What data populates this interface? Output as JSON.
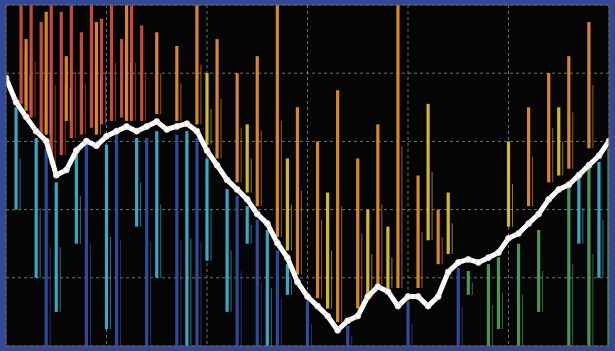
{
  "chart_data": {
    "type": "line",
    "xlim": [
      0,
      120
    ],
    "ylim": [
      0,
      100
    ],
    "xticks": [
      0,
      20,
      40,
      60,
      80,
      100,
      120
    ],
    "yticks": [
      0,
      20,
      40,
      60,
      80,
      100
    ],
    "grid": true,
    "tick_labels": false,
    "series": [
      {
        "type": "line",
        "color": "#ffffff",
        "marker": "circle",
        "x": [
          0,
          2,
          4,
          6,
          8,
          10,
          12,
          14,
          16,
          18,
          20,
          22,
          24,
          26,
          28,
          30,
          32,
          34,
          36,
          38,
          40,
          42,
          44,
          46,
          48,
          50,
          52,
          54,
          56,
          58,
          60,
          62,
          64,
          66,
          68,
          70,
          72,
          74,
          76,
          78,
          80,
          82,
          84,
          86,
          88,
          90,
          92,
          94,
          96,
          98,
          100,
          102,
          104,
          106,
          108,
          110,
          112,
          114,
          116,
          118,
          120
        ],
        "values": [
          78.6,
          71.5,
          67.2,
          63,
          60.1,
          50.1,
          51.6,
          57.3,
          60.1,
          58.7,
          61.5,
          63,
          64.4,
          63,
          64.4,
          65.8,
          63.5,
          64.4,
          65.2,
          63,
          57.3,
          53,
          48.7,
          45.9,
          43,
          38.7,
          35.9,
          30.2,
          25.9,
          18.8,
          14.5,
          11.7,
          8.8,
          4.6,
          7.4,
          8.8,
          14.5,
          17.4,
          16,
          11.7,
          14.5,
          14.5,
          11.7,
          14.5,
          21.7,
          24.5,
          25.4,
          24.5,
          25.9,
          27.4,
          31.6,
          33,
          35.9,
          38.7,
          43,
          45.9,
          47.3,
          50.1,
          53,
          55.8,
          60.1
        ]
      },
      {
        "type": "range",
        "color": "#d9533f",
        "x": [
          3,
          5,
          7,
          9,
          11,
          13,
          15,
          17,
          19,
          21,
          23,
          25,
          27
        ],
        "low": [
          71,
          67,
          62,
          53,
          56,
          61,
          62,
          64,
          65,
          66,
          67,
          66,
          66
        ],
        "high": [
          100,
          100,
          95,
          100,
          98,
          100,
          92,
          100,
          96,
          100,
          90,
          100,
          94
        ]
      },
      {
        "type": "range",
        "color": "#ef9430",
        "x": [
          4,
          8,
          12,
          18,
          24,
          30,
          34,
          38,
          42,
          46,
          50,
          54,
          58,
          62,
          66,
          70,
          74,
          78,
          82,
          86,
          104,
          108,
          112,
          116
        ],
        "low": [
          69,
          62,
          66,
          62,
          66,
          68,
          66,
          65,
          55,
          48,
          41,
          32,
          21,
          14,
          7,
          11,
          18,
          17,
          17,
          24,
          41,
          48,
          52,
          58
        ],
        "high": [
          90,
          98,
          85,
          95,
          100,
          92,
          88,
          100,
          90,
          80,
          85,
          100,
          70,
          60,
          75,
          55,
          65,
          100,
          50,
          40,
          70,
          80,
          85,
          95
        ]
      },
      {
        "type": "range",
        "color": "#e8cc3a",
        "x": [
          40,
          48,
          56,
          64,
          72,
          76,
          84,
          88,
          100,
          110
        ],
        "low": [
          59,
          45,
          28,
          11,
          14,
          17,
          31,
          27,
          35,
          50
        ],
        "high": [
          80,
          65,
          55,
          45,
          40,
          35,
          71,
          45,
          60,
          70
        ]
      },
      {
        "type": "range",
        "color": "#3fb8da",
        "x": [
          2,
          6,
          10,
          14,
          20,
          26,
          30,
          36,
          40,
          44,
          48,
          52,
          56,
          114,
          118
        ],
        "low": [
          40,
          20,
          10,
          30,
          5,
          35,
          20,
          0,
          25,
          10,
          30,
          0,
          15,
          30,
          20
        ],
        "high": [
          70,
          61,
          48,
          58,
          59,
          61,
          63,
          63,
          55,
          46,
          41,
          34,
          24,
          51,
          54
        ]
      },
      {
        "type": "range",
        "color": "#3352a8",
        "x": [
          8,
          16,
          22,
          28,
          34,
          38,
          46,
          50,
          54,
          60,
          68,
          80,
          90
        ],
        "low": [
          0,
          0,
          0,
          0,
          0,
          0,
          0,
          0,
          0,
          0,
          0,
          0,
          0
        ],
        "high": [
          58,
          60,
          62,
          61,
          62,
          61,
          44,
          37,
          28,
          13,
          6,
          13,
          23
        ]
      },
      {
        "type": "range",
        "color": "#52a563",
        "x": [
          92,
          96,
          98,
          102,
          106,
          112,
          116,
          120
        ],
        "low": [
          15,
          0,
          5,
          0,
          10,
          0,
          0,
          0
        ],
        "high": [
          22,
          24,
          26,
          30,
          34,
          48,
          54,
          58
        ]
      }
    ]
  }
}
